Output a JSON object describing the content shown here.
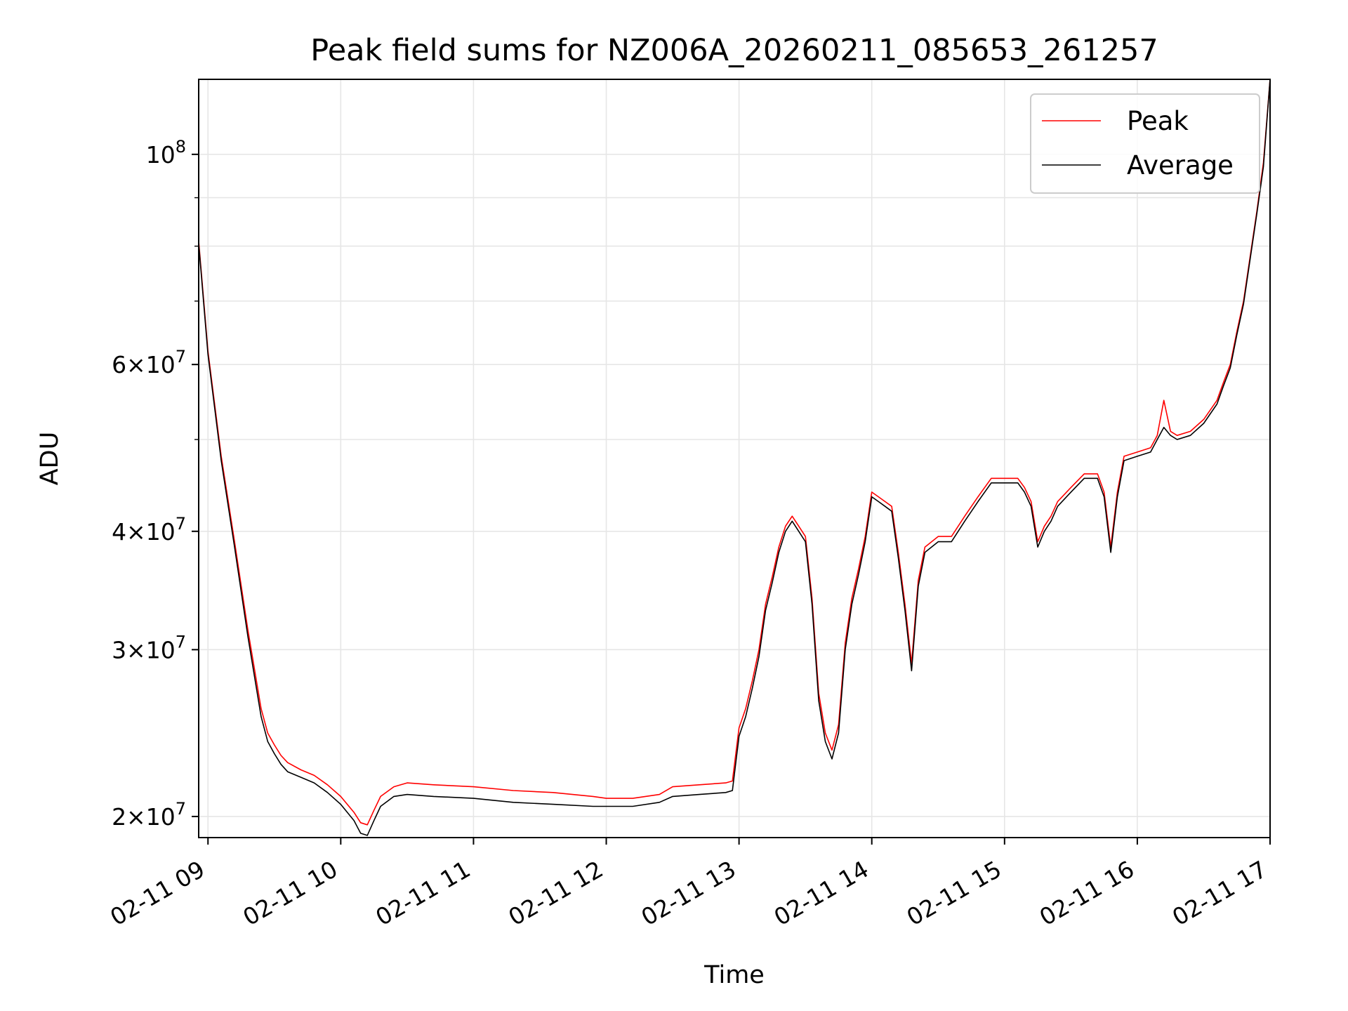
{
  "chart_data": {
    "type": "line",
    "title": "Peak field sums for NZ006A_20260211_085653_261257",
    "xlabel": "Time",
    "ylabel": "ADU",
    "yscale": "log",
    "ylim": [
      19000000,
      120000000
    ],
    "xlim_hours": [
      8.93,
      17.0
    ],
    "grid": true,
    "legend_position": "top-right",
    "x_ticks": [
      {
        "hour": 9,
        "label": "02-11 09"
      },
      {
        "hour": 10,
        "label": "02-11 10"
      },
      {
        "hour": 11,
        "label": "02-11 11"
      },
      {
        "hour": 12,
        "label": "02-11 12"
      },
      {
        "hour": 13,
        "label": "02-11 13"
      },
      {
        "hour": 14,
        "label": "02-11 14"
      },
      {
        "hour": 15,
        "label": "02-11 15"
      },
      {
        "hour": 16,
        "label": "02-11 16"
      },
      {
        "hour": 17,
        "label": "02-11 17"
      }
    ],
    "y_ticks": [
      {
        "value": 20000000,
        "mantissa": "2",
        "base": "10",
        "exp": "7"
      },
      {
        "value": 30000000,
        "mantissa": "3",
        "base": "10",
        "exp": "7"
      },
      {
        "value": 40000000,
        "mantissa": "4",
        "base": "10",
        "exp": "7"
      },
      {
        "value": 60000000,
        "mantissa": "6",
        "base": "10",
        "exp": "7"
      },
      {
        "value": 100000000,
        "mantissa": "",
        "base": "10",
        "exp": "8"
      }
    ],
    "y_minor_ticks": [
      50000000,
      70000000,
      80000000,
      90000000
    ],
    "series": [
      {
        "name": "Peak",
        "color": "#ff0000",
        "x": [
          8.93,
          9.0,
          9.1,
          9.2,
          9.3,
          9.4,
          9.45,
          9.5,
          9.55,
          9.6,
          9.7,
          9.8,
          9.9,
          10.0,
          10.1,
          10.15,
          10.2,
          10.25,
          10.3,
          10.4,
          10.5,
          10.7,
          11.0,
          11.3,
          11.6,
          11.9,
          12.0,
          12.2,
          12.4,
          12.5,
          12.7,
          12.9,
          12.95,
          13.0,
          13.05,
          13.1,
          13.15,
          13.2,
          13.25,
          13.3,
          13.35,
          13.4,
          13.45,
          13.5,
          13.55,
          13.6,
          13.65,
          13.7,
          13.75,
          13.8,
          13.85,
          13.9,
          13.95,
          14.0,
          14.05,
          14.1,
          14.15,
          14.2,
          14.25,
          14.3,
          14.35,
          14.4,
          14.5,
          14.6,
          14.7,
          14.8,
          14.9,
          15.0,
          15.1,
          15.15,
          15.2,
          15.25,
          15.3,
          15.35,
          15.4,
          15.5,
          15.6,
          15.7,
          15.75,
          15.8,
          15.85,
          15.9,
          16.0,
          16.1,
          16.15,
          16.2,
          16.25,
          16.3,
          16.4,
          16.5,
          16.6,
          16.65,
          16.7,
          16.75,
          16.8,
          16.85,
          16.9,
          16.95,
          17.0
        ],
        "y": [
          81000000,
          62000000,
          48000000,
          39000000,
          31500000,
          26000000,
          24500000,
          23800000,
          23200000,
          22800000,
          22400000,
          22100000,
          21600000,
          21000000,
          20200000,
          19700000,
          19600000,
          20300000,
          21000000,
          21500000,
          21700000,
          21600000,
          21500000,
          21300000,
          21200000,
          21000000,
          20900000,
          20900000,
          21100000,
          21500000,
          21600000,
          21700000,
          21800000,
          24800000,
          26000000,
          27800000,
          30000000,
          33500000,
          35800000,
          38500000,
          40500000,
          41500000,
          40500000,
          39500000,
          34000000,
          27000000,
          24500000,
          23500000,
          25000000,
          30500000,
          34000000,
          36500000,
          39500000,
          44000000,
          43500000,
          43000000,
          42500000,
          38000000,
          33500000,
          29000000,
          35500000,
          38500000,
          39500000,
          39500000,
          41500000,
          43500000,
          45500000,
          45500000,
          45500000,
          44500000,
          43000000,
          39000000,
          40500000,
          41500000,
          43000000,
          44500000,
          46000000,
          46000000,
          44000000,
          38500000,
          44000000,
          48000000,
          48500000,
          49000000,
          50500000,
          55000000,
          51000000,
          50500000,
          51000000,
          52500000,
          55000000,
          57500000,
          60000000,
          65000000,
          70000000,
          78000000,
          87000000,
          98000000,
          122000000
        ]
      },
      {
        "name": "Average",
        "color": "#000000",
        "x": [
          8.93,
          9.0,
          9.1,
          9.2,
          9.3,
          9.4,
          9.45,
          9.5,
          9.55,
          9.6,
          9.7,
          9.8,
          9.9,
          10.0,
          10.1,
          10.15,
          10.2,
          10.25,
          10.3,
          10.4,
          10.5,
          10.7,
          11.0,
          11.3,
          11.6,
          11.9,
          12.0,
          12.2,
          12.4,
          12.5,
          12.7,
          12.9,
          12.95,
          13.0,
          13.05,
          13.1,
          13.15,
          13.2,
          13.25,
          13.3,
          13.35,
          13.4,
          13.45,
          13.5,
          13.55,
          13.6,
          13.65,
          13.7,
          13.75,
          13.8,
          13.85,
          13.9,
          13.95,
          14.0,
          14.05,
          14.1,
          14.15,
          14.2,
          14.25,
          14.3,
          14.35,
          14.4,
          14.5,
          14.6,
          14.7,
          14.8,
          14.9,
          15.0,
          15.1,
          15.15,
          15.2,
          15.25,
          15.3,
          15.35,
          15.4,
          15.5,
          15.6,
          15.7,
          15.75,
          15.8,
          15.85,
          15.9,
          16.0,
          16.1,
          16.15,
          16.2,
          16.25,
          16.3,
          16.4,
          16.5,
          16.6,
          16.65,
          16.7,
          16.75,
          16.8,
          16.85,
          16.9,
          16.95,
          17.0
        ],
        "y": [
          80500000,
          61500000,
          47500000,
          38500000,
          31000000,
          25500000,
          24000000,
          23300000,
          22700000,
          22300000,
          22000000,
          21700000,
          21200000,
          20600000,
          19800000,
          19200000,
          19100000,
          19800000,
          20500000,
          21000000,
          21100000,
          21000000,
          20900000,
          20700000,
          20600000,
          20500000,
          20500000,
          20500000,
          20700000,
          21000000,
          21100000,
          21200000,
          21300000,
          24300000,
          25500000,
          27300000,
          29500000,
          33000000,
          35300000,
          38000000,
          40000000,
          41000000,
          40000000,
          39000000,
          33500000,
          26500000,
          24000000,
          23000000,
          24500000,
          30000000,
          33500000,
          36000000,
          39000000,
          43500000,
          43000000,
          42500000,
          42000000,
          37500000,
          33000000,
          28500000,
          35000000,
          38000000,
          39000000,
          39000000,
          41000000,
          43000000,
          45000000,
          45000000,
          45000000,
          44000000,
          42500000,
          38500000,
          40000000,
          41000000,
          42500000,
          44000000,
          45500000,
          45500000,
          43500000,
          38000000,
          43500000,
          47500000,
          48000000,
          48500000,
          50000000,
          51500000,
          50500000,
          50000000,
          50500000,
          52000000,
          54500000,
          57000000,
          59500000,
          64500000,
          69500000,
          77500000,
          86500000,
          97000000,
          121000000
        ]
      }
    ]
  }
}
